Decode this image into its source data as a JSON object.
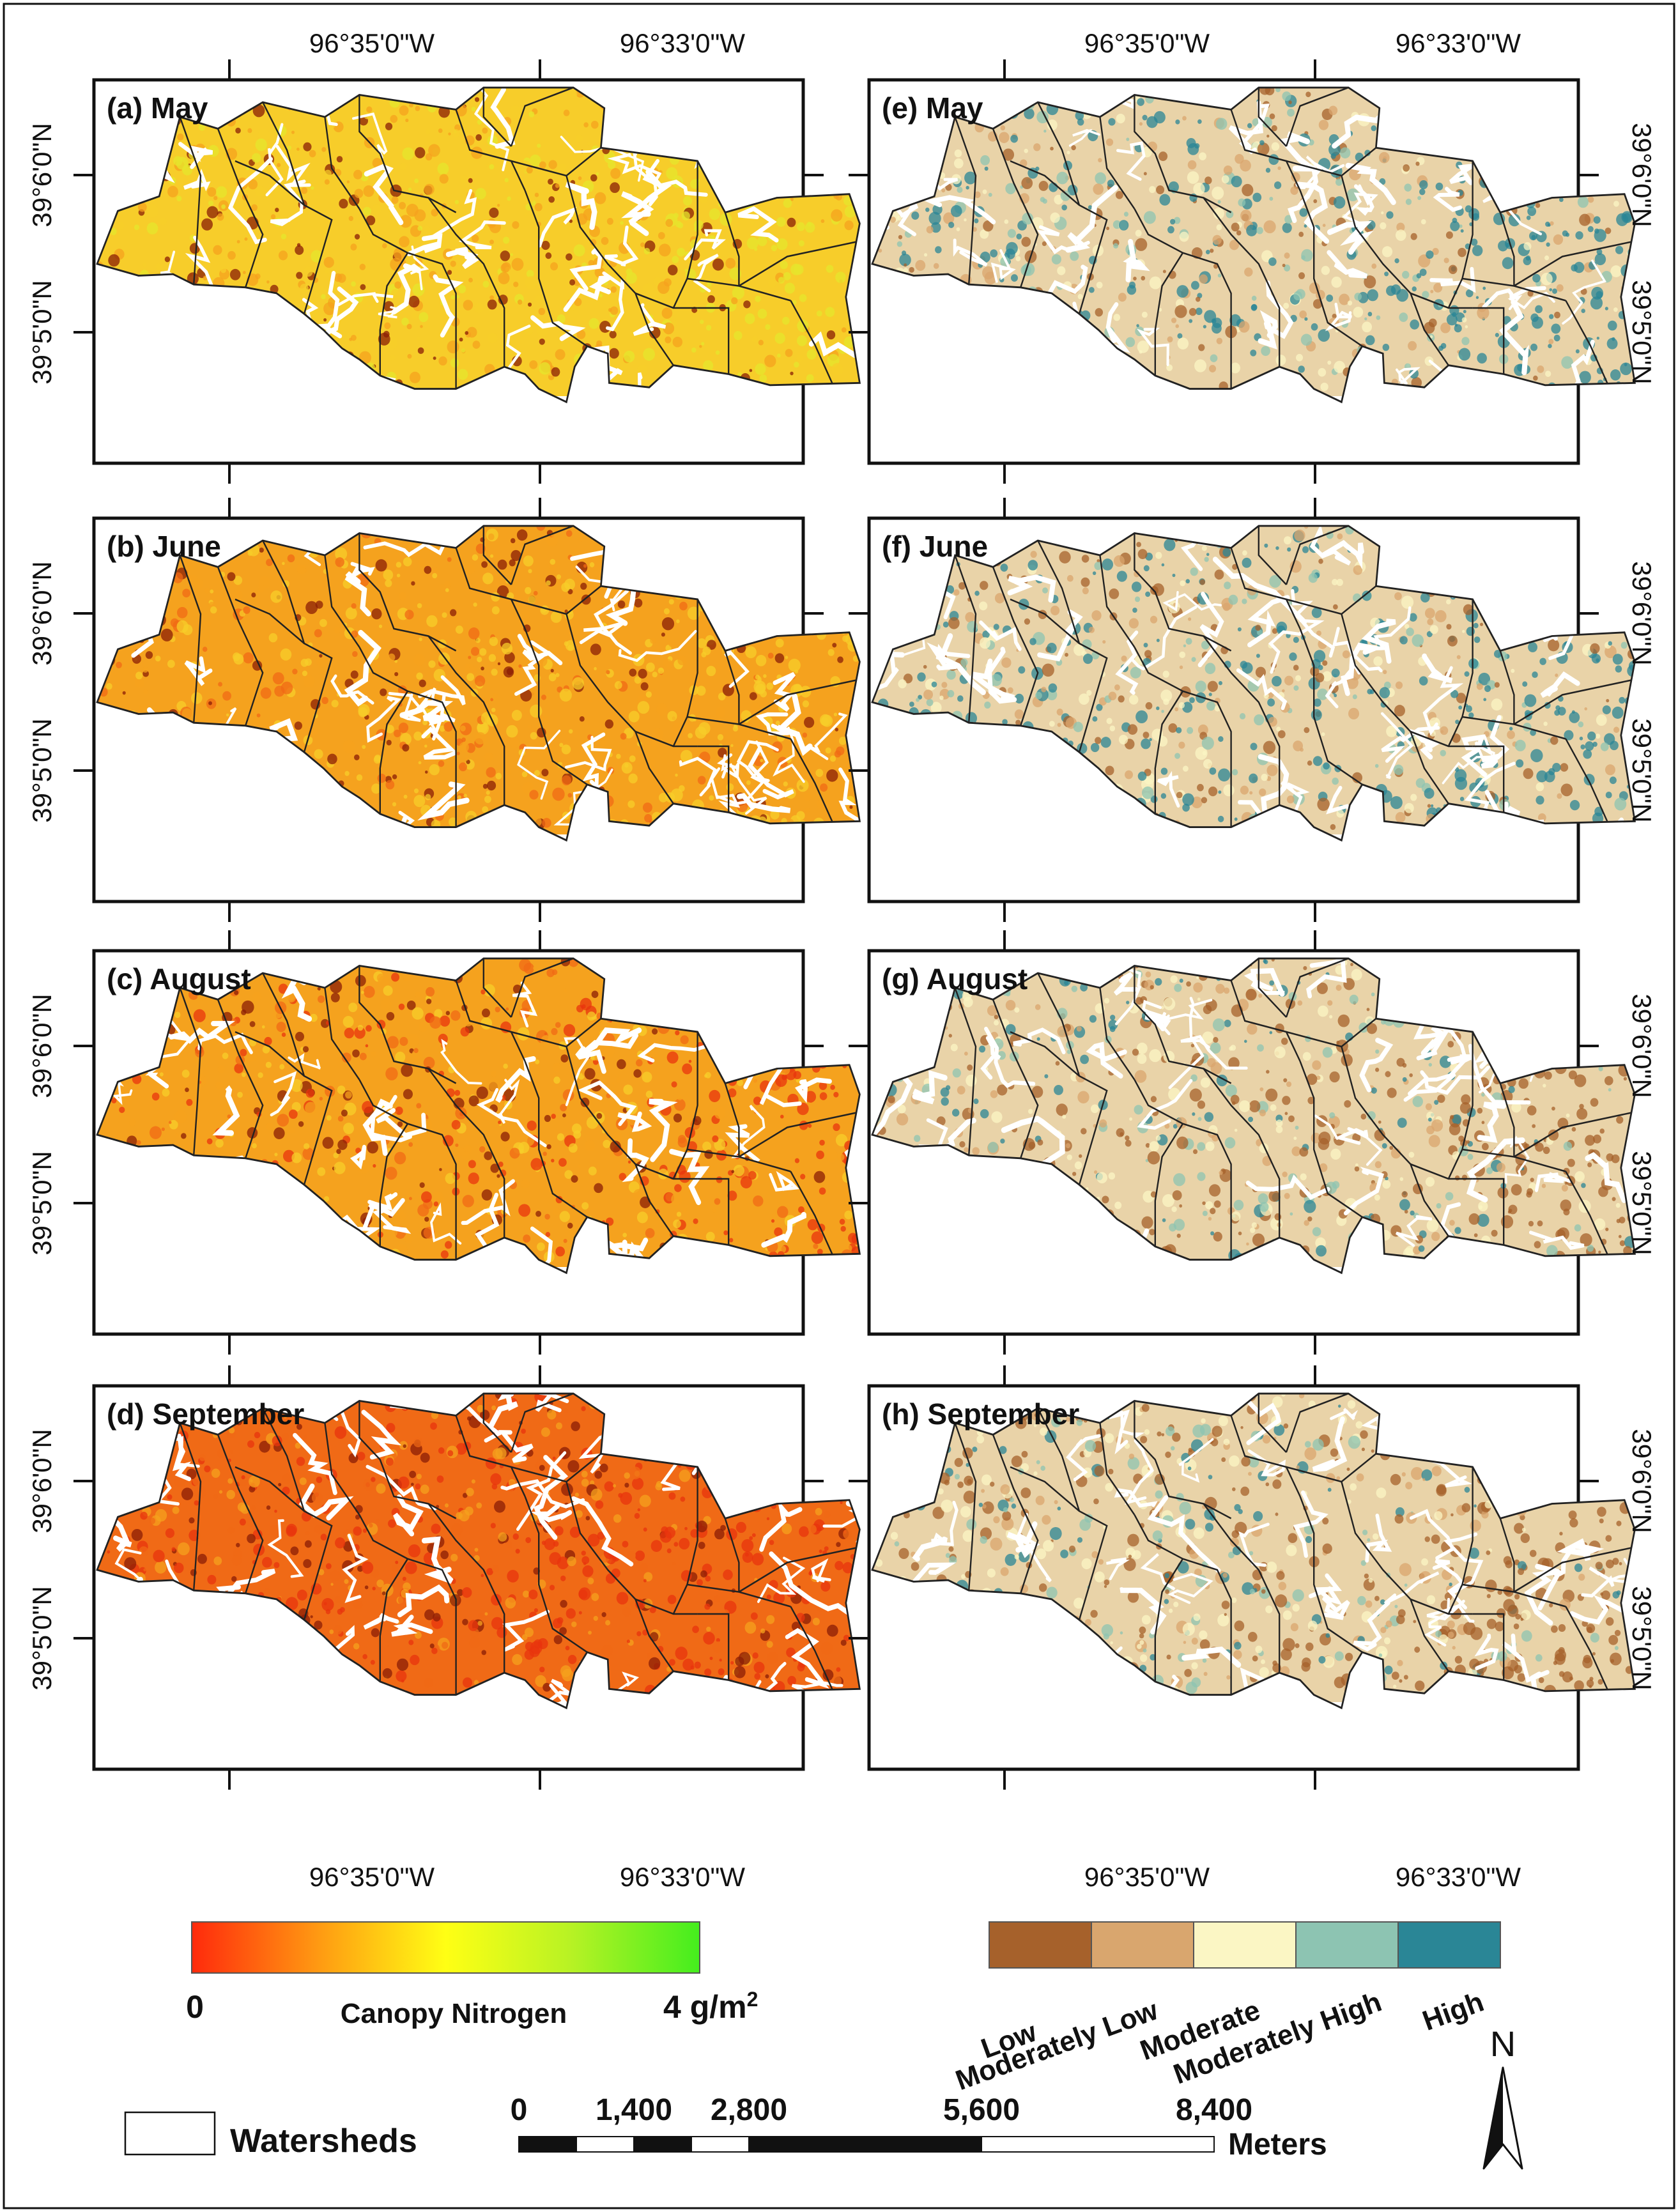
{
  "panels": [
    {
      "label": "(a)  May",
      "palette": "nitrogen",
      "level": 0.55
    },
    {
      "label": "(b) June",
      "palette": "nitrogen",
      "level": 0.45
    },
    {
      "label": "(c) August",
      "palette": "nitrogen",
      "level": 0.3
    },
    {
      "label": "(d) September",
      "palette": "nitrogen",
      "level": 0.12
    },
    {
      "label": "(e) May",
      "palette": "class",
      "level": 0.55
    },
    {
      "label": "(f) June",
      "palette": "class",
      "level": 0.5
    },
    {
      "label": "(g) August",
      "palette": "class",
      "level": 0.4
    },
    {
      "label": "(h) September",
      "palette": "class",
      "level": 0.3
    }
  ],
  "coordinates": {
    "lon_labels": [
      "96°35'0\"W",
      "96°33'0\"W"
    ],
    "lat_labels": [
      "39°6'0\"N",
      "39°5'0\"N"
    ]
  },
  "nitrogen_legend": {
    "min_label": "0",
    "title": "Canopy Nitrogen",
    "max_label": "4 g/m",
    "max_label_sup": "2",
    "colors": [
      "#ff2a0c",
      "#ff9a12",
      "#ffff14",
      "#b6f224",
      "#44ee1e"
    ]
  },
  "class_legend": {
    "classes": [
      {
        "label": "Low",
        "color": "#a6612b"
      },
      {
        "label": "Moderately Low",
        "color": "#d9a66e"
      },
      {
        "label": "Moderate",
        "color": "#fbf6c4"
      },
      {
        "label": "Moderately High",
        "color": "#8dc4b2"
      },
      {
        "label": "High",
        "color": "#2a8696"
      }
    ]
  },
  "watersheds_legend": {
    "label": "Watersheds"
  },
  "scale_bar": {
    "ticks": [
      "0",
      "1,400",
      "2,800",
      "5,600",
      "8,400"
    ],
    "unit": "Meters"
  },
  "north_arrow": {
    "label": "N"
  }
}
